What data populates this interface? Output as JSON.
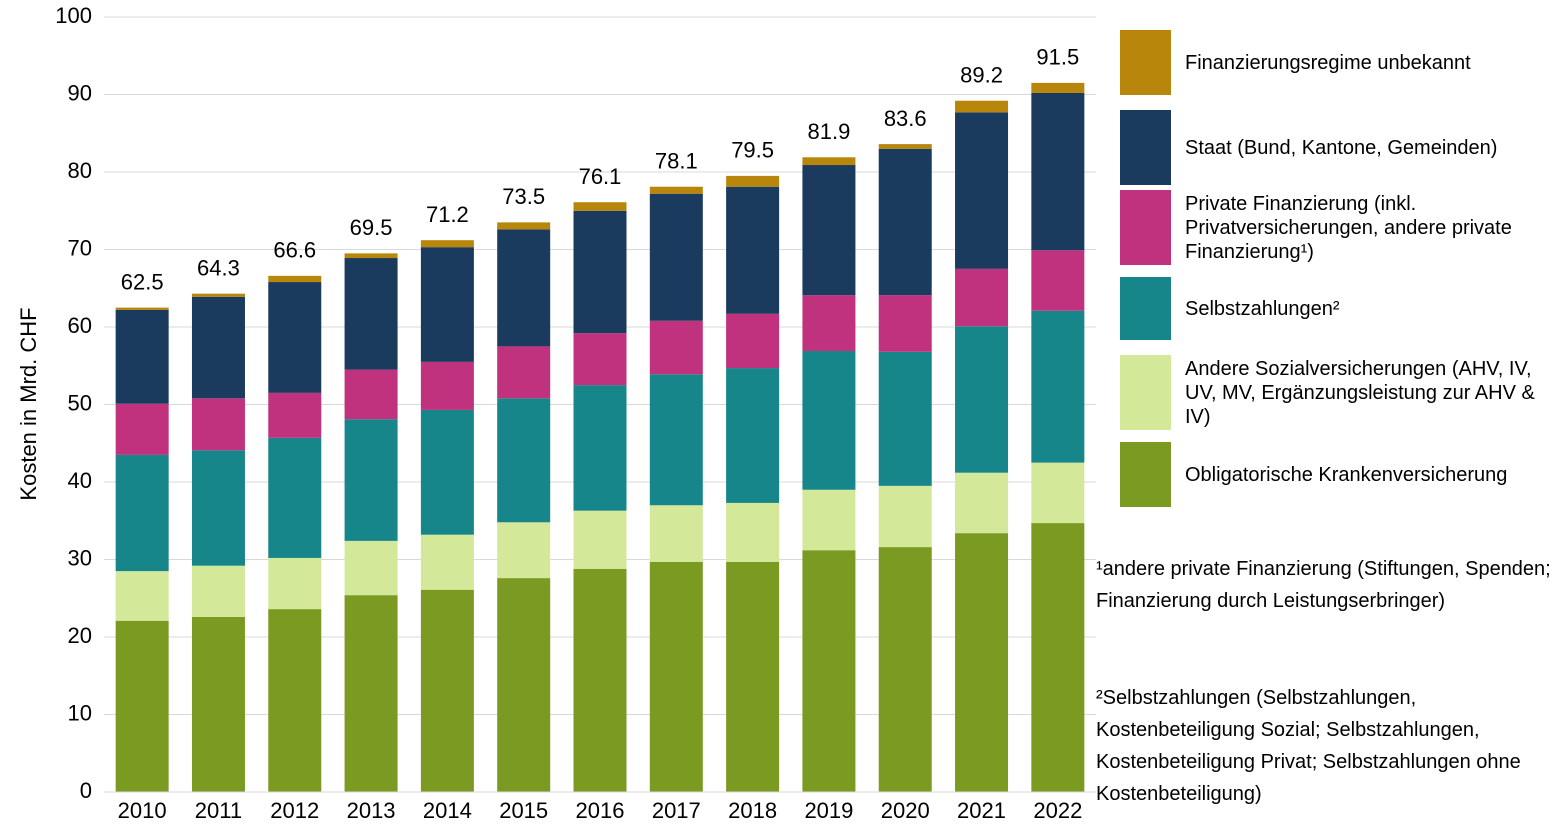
{
  "chart_data": {
    "type": "stacked-bar",
    "y_label": "Kosten in Mrd. CHF",
    "categories": [
      "2010",
      "2011",
      "2012",
      "2013",
      "2014",
      "2015",
      "2016",
      "2017",
      "2018",
      "2019",
      "2020",
      "2021",
      "2022"
    ],
    "series": [
      {
        "name": "Obligatorische Krankenversicherung",
        "color": "#7a9a22",
        "values": [
          22.1,
          22.6,
          23.6,
          25.4,
          26.1,
          27.6,
          28.8,
          29.7,
          29.7,
          31.2,
          31.6,
          33.4,
          34.7
        ]
      },
      {
        "name": "Andere Sozialversicherungen (AHV, IV, UV, MV, Ergänzungsleistung zur AHV & IV)",
        "color": "#d4e89a",
        "values": [
          6.4,
          6.6,
          6.6,
          7.0,
          7.1,
          7.2,
          7.5,
          7.3,
          7.6,
          7.8,
          7.9,
          7.8,
          7.8
        ]
      },
      {
        "name": "Selbstzahlungen²",
        "color": "#17868a",
        "values": [
          15.0,
          14.9,
          15.5,
          15.7,
          16.1,
          16.0,
          16.2,
          16.9,
          17.4,
          17.9,
          17.3,
          18.9,
          19.6
        ]
      },
      {
        "name": "Private Finanzierung (inkl. Privatversicherungen, andere private Finanzierung¹)",
        "color": "#c0317e",
        "values": [
          6.6,
          6.7,
          5.8,
          6.4,
          6.2,
          6.7,
          6.7,
          6.9,
          7.0,
          7.2,
          7.3,
          7.4,
          7.8
        ]
      },
      {
        "name": "Staat (Bund, Kantone, Gemeinden)",
        "color": "#1a3a5e",
        "values": [
          12.1,
          13.1,
          14.3,
          14.4,
          14.8,
          15.1,
          15.8,
          16.4,
          16.4,
          16.8,
          18.9,
          20.2,
          20.3
        ]
      },
      {
        "name": "Finanzierungsregime unbekannt",
        "color": "#b8860b",
        "values": [
          0.3,
          0.4,
          0.8,
          0.6,
          0.9,
          0.9,
          1.1,
          0.9,
          1.4,
          1.0,
          0.6,
          1.5,
          1.3
        ]
      }
    ],
    "totals": [
      62.5,
      64.3,
      66.6,
      69.5,
      71.2,
      73.5,
      76.1,
      78.1,
      79.5,
      81.9,
      83.6,
      89.2,
      91.5
    ],
    "ylim": [
      0,
      100
    ],
    "yticks": [
      0,
      10,
      20,
      30,
      40,
      50,
      60,
      70,
      80,
      90,
      100
    ],
    "grid": true,
    "notes": [
      "¹andere private Finanzierung (Stiftungen, Spenden; Finanzierung durch Leistungserbringer)",
      "²Selbstzahlungen (Selbstzahlungen, Kostenbeteiligung Sozial; Selbstzahlungen, Kostenbeteiligung Privat; Selbstzahlungen ohne Kostenbeteiligung)"
    ]
  }
}
